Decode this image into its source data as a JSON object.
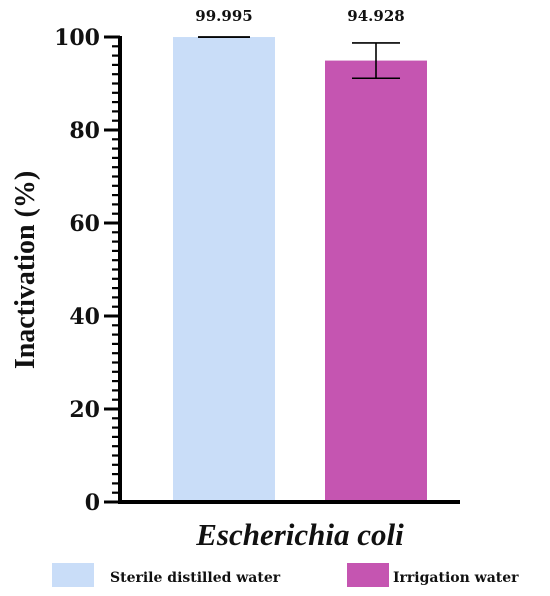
{
  "chart_data": {
    "type": "bar",
    "title": "",
    "xlabel": "Escherichia coli",
    "ylabel": "Inactivation (%)",
    "ylim": [
      0,
      100
    ],
    "yticks": [
      0,
      20,
      40,
      60,
      80,
      100
    ],
    "yticks_minor_step": 2,
    "grid": false,
    "legend_position": "bottom",
    "series": [
      {
        "name": "Sterile distilled water",
        "value": 99.995,
        "error": 0.0,
        "label": "99.995",
        "color": "#c9ddf8"
      },
      {
        "name": "Irrigation water",
        "value": 94.928,
        "error": 3.8,
        "label": "94.928",
        "color": "#c555b1"
      }
    ]
  }
}
